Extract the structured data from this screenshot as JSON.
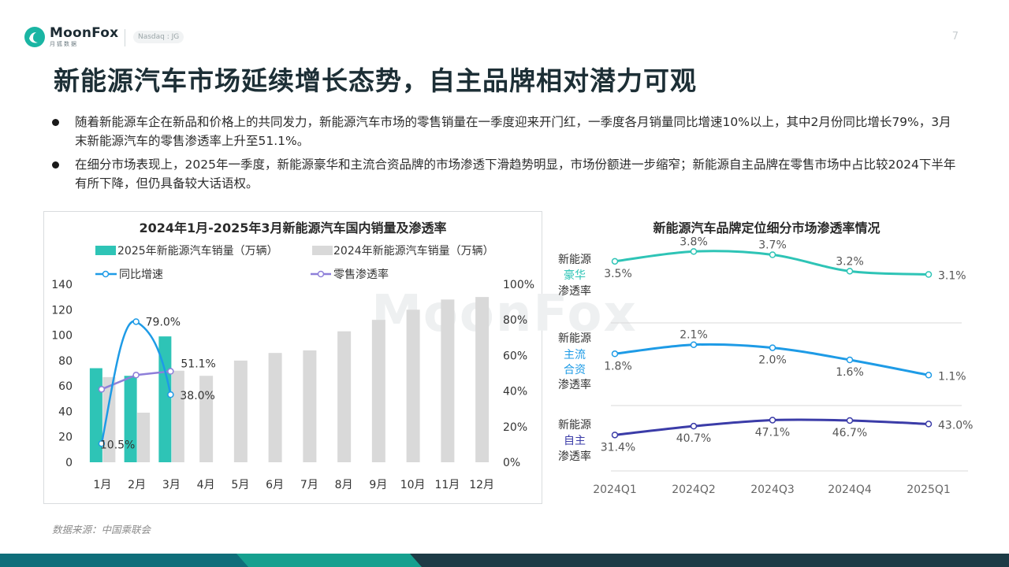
{
  "header": {
    "logo_name": "MoonFox",
    "logo_sub": "月狐数据",
    "ticker": "Nasdaq : JG",
    "page_number": "7"
  },
  "title": "新能源汽车市场延续增长态势，自主品牌相对潜力可观",
  "bullets": [
    "随着新能源车企在新品和价格上的共同发力，新能源汽车市场的零售销量在一季度迎来开门红，一季度各月销量同比增速10%以上，其中2月份同比增长79%，3月末新能源汽车的零售渗透率上升至51.1%。",
    "在细分市场表现上，2025年一季度，新能源豪华和主流合资品牌的市场渗透下滑趋势明显，市场份额进一步缩窄；新能源自主品牌在零售市场中占比较2024下半年有所下降，但仍具备较大话语权。"
  ],
  "watermark": "MoonFox",
  "source": "数据来源：中国乘联会",
  "colors": {
    "teal": "#2ec4b6",
    "grey_bar": "#d9d9d9",
    "blue": "#1e9be6",
    "purple": "#8e7fd9",
    "navy": "#3b3ca8",
    "dark_teal": "#1d3b46"
  },
  "chart_data": [
    {
      "type": "bar",
      "title": "2024年1月-2025年3月新能源汽车国内销量及渗透率",
      "categories": [
        "1月",
        "2月",
        "3月",
        "4月",
        "5月",
        "6月",
        "7月",
        "8月",
        "9月",
        "10月",
        "11月",
        "12月"
      ],
      "series": [
        {
          "name": "2025年新能源汽车销量（万辆）",
          "type": "bar",
          "axis": "left",
          "color": "#2ec4b6",
          "values": [
            74,
            68,
            99,
            null,
            null,
            null,
            null,
            null,
            null,
            null,
            null,
            null
          ]
        },
        {
          "name": "2024年新能源汽车销量（万辆）",
          "type": "bar",
          "axis": "left",
          "color": "#d9d9d9",
          "values": [
            67,
            39,
            72,
            68,
            80,
            86,
            88,
            103,
            112,
            120,
            128,
            130
          ]
        },
        {
          "name": "同比增速",
          "type": "line",
          "axis": "right",
          "color": "#1e9be6",
          "values": [
            10.5,
            79.0,
            38.0,
            null,
            null,
            null,
            null,
            null,
            null,
            null,
            null,
            null
          ],
          "labels": [
            "10.5%",
            "79.0%",
            "38.0%"
          ]
        },
        {
          "name": "零售渗透率",
          "type": "line",
          "axis": "right",
          "color": "#8e7fd9",
          "values": [
            41.0,
            49.0,
            51.1,
            null,
            null,
            null,
            null,
            null,
            null,
            null,
            null,
            null
          ],
          "labels": [
            "51.1%"
          ]
        }
      ],
      "ylim": [
        0,
        140
      ],
      "yticks": [
        0,
        20,
        40,
        60,
        80,
        100,
        120,
        140
      ],
      "y2lim": [
        0,
        100
      ],
      "y2ticks": [
        "0%",
        "20%",
        "40%",
        "60%",
        "80%",
        "100%"
      ],
      "legend": "top"
    },
    {
      "type": "line",
      "title": "新能源汽车品牌定位细分市场渗透率情况",
      "categories": [
        "2024Q1",
        "2024Q2",
        "2024Q3",
        "2024Q4",
        "2025Q1"
      ],
      "series": [
        {
          "name": [
            "新能源",
            "豪华",
            "渗透率"
          ],
          "color": "#2ec4b6",
          "values": [
            3.5,
            3.8,
            3.7,
            3.2,
            3.1
          ],
          "labels": [
            "3.5%",
            "3.8%",
            "3.7%",
            "3.2%",
            "3.1%"
          ]
        },
        {
          "name": [
            "新能源",
            "主流",
            "合资",
            "渗透率"
          ],
          "color": "#1e9be6",
          "values": [
            1.8,
            2.1,
            2.0,
            1.6,
            1.1
          ],
          "labels": [
            "1.8%",
            "2.1%",
            "2.0%",
            "1.6%",
            "1.1%"
          ]
        },
        {
          "name": [
            "新能源",
            "自主",
            "渗透率"
          ],
          "color": "#3b3ca8",
          "values": [
            31.4,
            40.7,
            47.1,
            46.7,
            43.0
          ],
          "labels": [
            "31.4%",
            "40.7%",
            "47.1%",
            "46.7%",
            "43.0%"
          ]
        }
      ]
    }
  ]
}
